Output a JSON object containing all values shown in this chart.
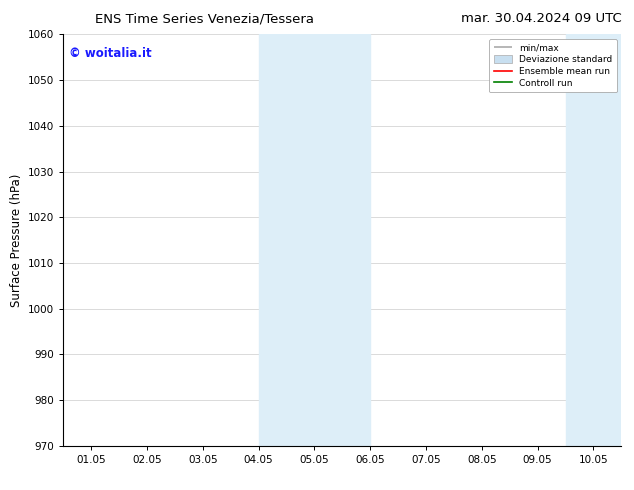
{
  "title_left": "ENS Time Series Venezia/Tessera",
  "title_right": "mar. 30.04.2024 09 UTC",
  "ylabel": "Surface Pressure (hPa)",
  "ylim": [
    970,
    1060
  ],
  "yticks": [
    970,
    980,
    990,
    1000,
    1010,
    1020,
    1030,
    1040,
    1050,
    1060
  ],
  "xlabels": [
    "01.05",
    "02.05",
    "03.05",
    "04.05",
    "05.05",
    "06.05",
    "07.05",
    "08.05",
    "09.05",
    "10.05"
  ],
  "x_positions": [
    0,
    1,
    2,
    3,
    4,
    5,
    6,
    7,
    8,
    9
  ],
  "shade_regions": [
    {
      "xmin": 3.0,
      "xmax": 5.0,
      "color": "#ddeef8"
    },
    {
      "xmin": 8.5,
      "xmax": 10.0,
      "color": "#ddeef8"
    }
  ],
  "watermark_text": "© woitalia.it",
  "watermark_color": "#1a1aff",
  "legend_entries": [
    {
      "label": "min/max",
      "color": "#aaaaaa",
      "lw": 1.2
    },
    {
      "label": "Deviazione standard",
      "color": "#c8dff0",
      "lw": 6
    },
    {
      "label": "Ensemble mean run",
      "color": "red",
      "lw": 1.2
    },
    {
      "label": "Controll run",
      "color": "green",
      "lw": 1.2
    }
  ],
  "bg_color": "#ffffff",
  "grid_color": "#cccccc",
  "tick_label_fontsize": 7.5,
  "axis_label_fontsize": 8.5,
  "title_fontsize": 9.5
}
